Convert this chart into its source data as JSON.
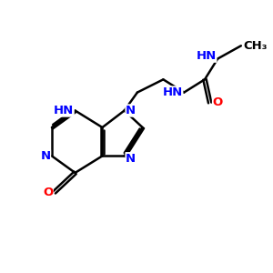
{
  "background_color": "#ffffff",
  "bond_color": "#000000",
  "N_color": "#0000ff",
  "O_color": "#ff0000",
  "C_color": "#000000",
  "figsize": [
    3.0,
    3.0
  ],
  "dpi": 100,
  "xlim": [
    0,
    10
  ],
  "ylim": [
    0,
    10
  ],
  "lw": 1.8,
  "fs": 9.5
}
